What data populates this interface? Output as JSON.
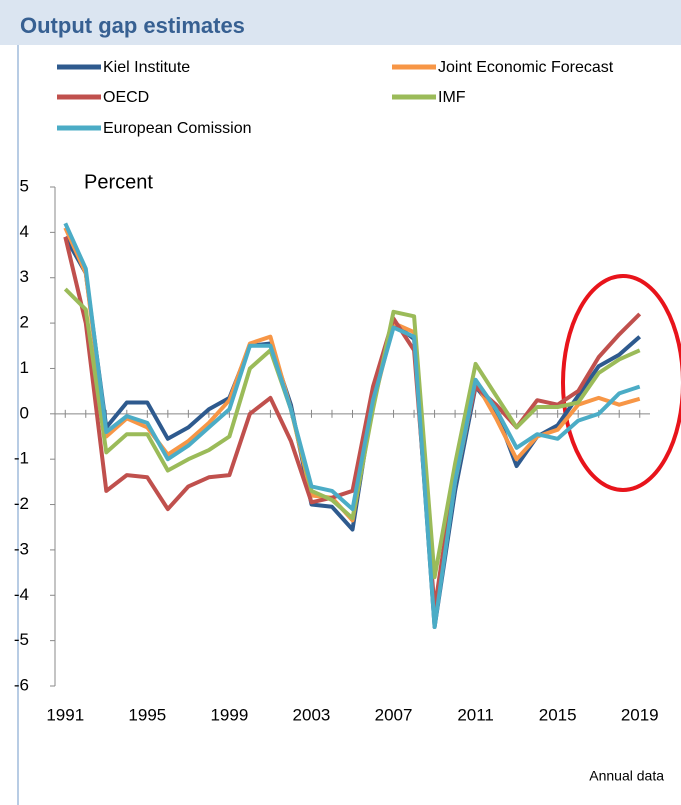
{
  "chart_data": {
    "type": "line",
    "title": "Output gap estimates",
    "y_label": "Percent",
    "note": "Annual data",
    "x": [
      1991,
      1992,
      1993,
      1994,
      1995,
      1996,
      1997,
      1998,
      1999,
      2000,
      2001,
      2002,
      2003,
      2004,
      2005,
      2006,
      2007,
      2008,
      2009,
      2010,
      2011,
      2012,
      2013,
      2014,
      2015,
      2016,
      2017,
      2018,
      2019
    ],
    "series": [
      {
        "name": "Kiel Institute",
        "color": "#2e5a8e",
        "values": [
          3.9,
          3.1,
          -0.3,
          0.25,
          0.25,
          -0.55,
          -0.3,
          0.1,
          0.35,
          1.5,
          1.55,
          0.2,
          -2.0,
          -2.05,
          -2.55,
          0.3,
          2.0,
          1.65,
          -4.7,
          -1.7,
          0.6,
          0.05,
          -1.15,
          -0.5,
          -0.25,
          0.4,
          1.05,
          1.3,
          1.7
        ]
      },
      {
        "name": "Joint Economic Forecast",
        "color": "#f79646",
        "values": [
          4.1,
          3.1,
          -0.5,
          -0.1,
          -0.3,
          -0.9,
          -0.6,
          -0.2,
          0.3,
          1.55,
          1.7,
          0.1,
          -1.8,
          -1.85,
          -2.35,
          0.2,
          2.0,
          1.8,
          -4.6,
          -1.5,
          0.7,
          -0.1,
          -1.0,
          -0.5,
          -0.35,
          0.2,
          0.35,
          0.2,
          0.33
        ]
      },
      {
        "name": "OECD",
        "color": "#c0504d",
        "values": [
          3.9,
          2.0,
          -1.7,
          -1.35,
          -1.4,
          -2.1,
          -1.6,
          -1.4,
          -1.35,
          0.0,
          0.35,
          -0.6,
          -1.95,
          -1.85,
          -1.7,
          0.6,
          2.1,
          1.4,
          -4.3,
          -1.3,
          0.6,
          0.2,
          -0.3,
          0.3,
          0.2,
          0.5,
          1.25,
          1.75,
          2.2
        ]
      },
      {
        "name": "IMF",
        "color": "#9bbb59",
        "values": [
          2.75,
          2.3,
          -0.85,
          -0.45,
          -0.45,
          -1.25,
          -1.0,
          -0.8,
          -0.5,
          1.0,
          1.4,
          0.1,
          -1.7,
          -1.9,
          -2.3,
          0.1,
          2.25,
          2.15,
          -3.6,
          -1.1,
          1.1,
          0.4,
          -0.3,
          0.15,
          0.15,
          0.25,
          0.9,
          1.2,
          1.4
        ]
      },
      {
        "name": "European Comission",
        "color": "#4bacc6",
        "values": [
          4.2,
          3.2,
          -0.4,
          -0.05,
          -0.2,
          -1.0,
          -0.7,
          -0.3,
          0.1,
          1.5,
          1.5,
          0.1,
          -1.6,
          -1.7,
          -2.1,
          0.3,
          1.9,
          1.7,
          -4.7,
          -1.5,
          0.75,
          0.1,
          -0.75,
          -0.45,
          -0.55,
          -0.15,
          0.0,
          0.45,
          0.6
        ]
      }
    ],
    "xlim": [
      1990.5,
      2019.5
    ],
    "xticks": [
      1991,
      1995,
      1999,
      2003,
      2007,
      2011,
      2015,
      2019
    ],
    "ylim": [
      -6,
      5
    ],
    "yticks": [
      -6,
      -5,
      -4,
      -3,
      -2,
      -1,
      0,
      1,
      2,
      3,
      4,
      5
    ]
  }
}
